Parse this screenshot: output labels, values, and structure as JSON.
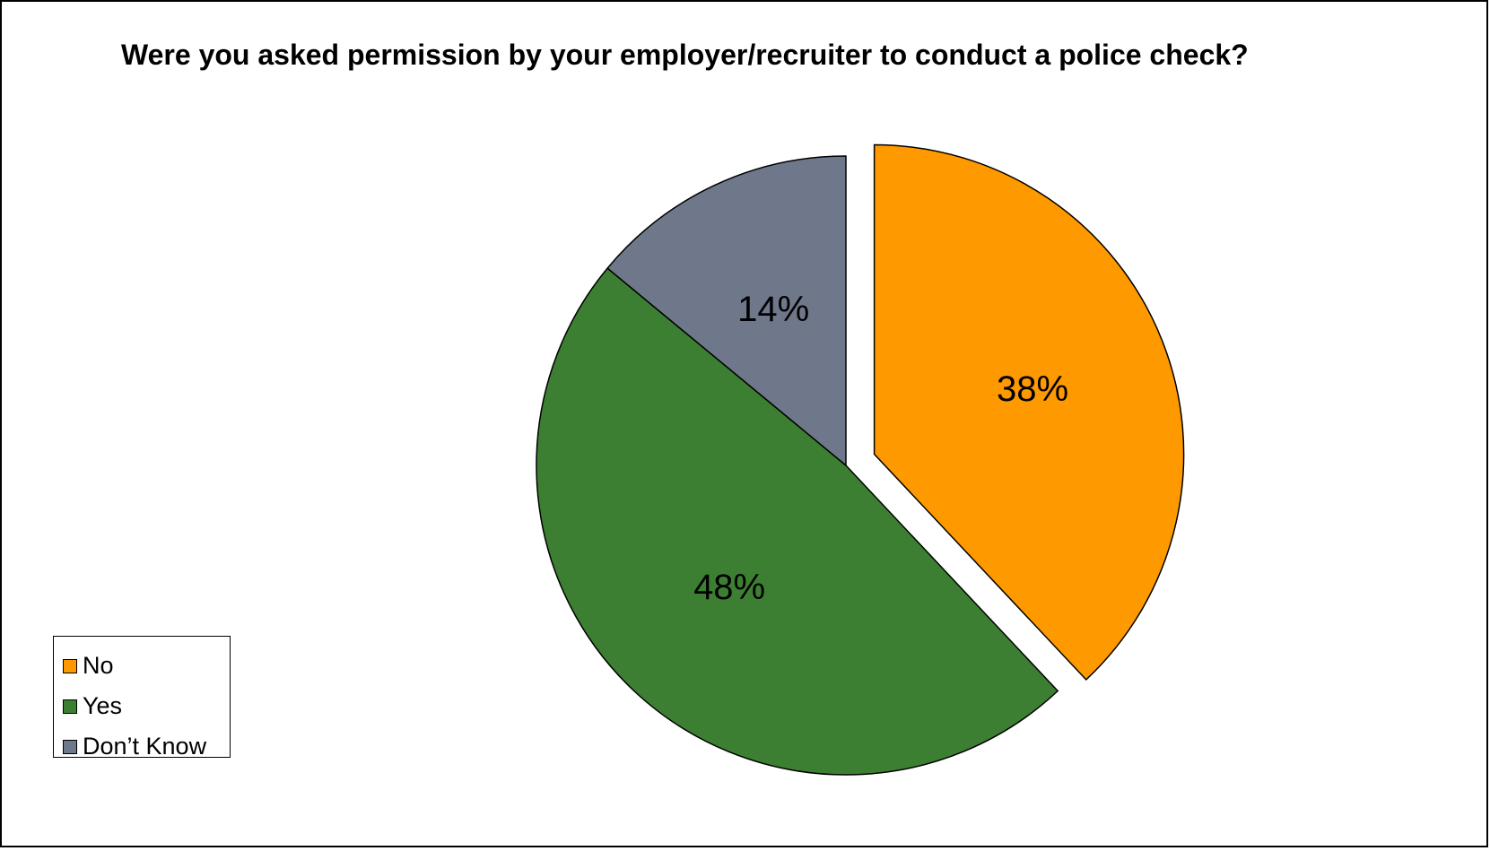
{
  "chart_data": {
    "type": "pie",
    "title": "Were you asked permission by your employer/recruiter to conduct a police check?",
    "slices": [
      {
        "label": "No",
        "value": 38,
        "display": "38%",
        "color": "#ff9900",
        "exploded": true
      },
      {
        "label": "Yes",
        "value": 48,
        "display": "48%",
        "color": "#3d7f32"
      },
      {
        "label": "Don’t Know",
        "value": 14,
        "display": "14%",
        "color": "#6f788a"
      }
    ],
    "start_angle_deg": 0,
    "direction": "clockwise",
    "legend_position": "bottom-left"
  }
}
